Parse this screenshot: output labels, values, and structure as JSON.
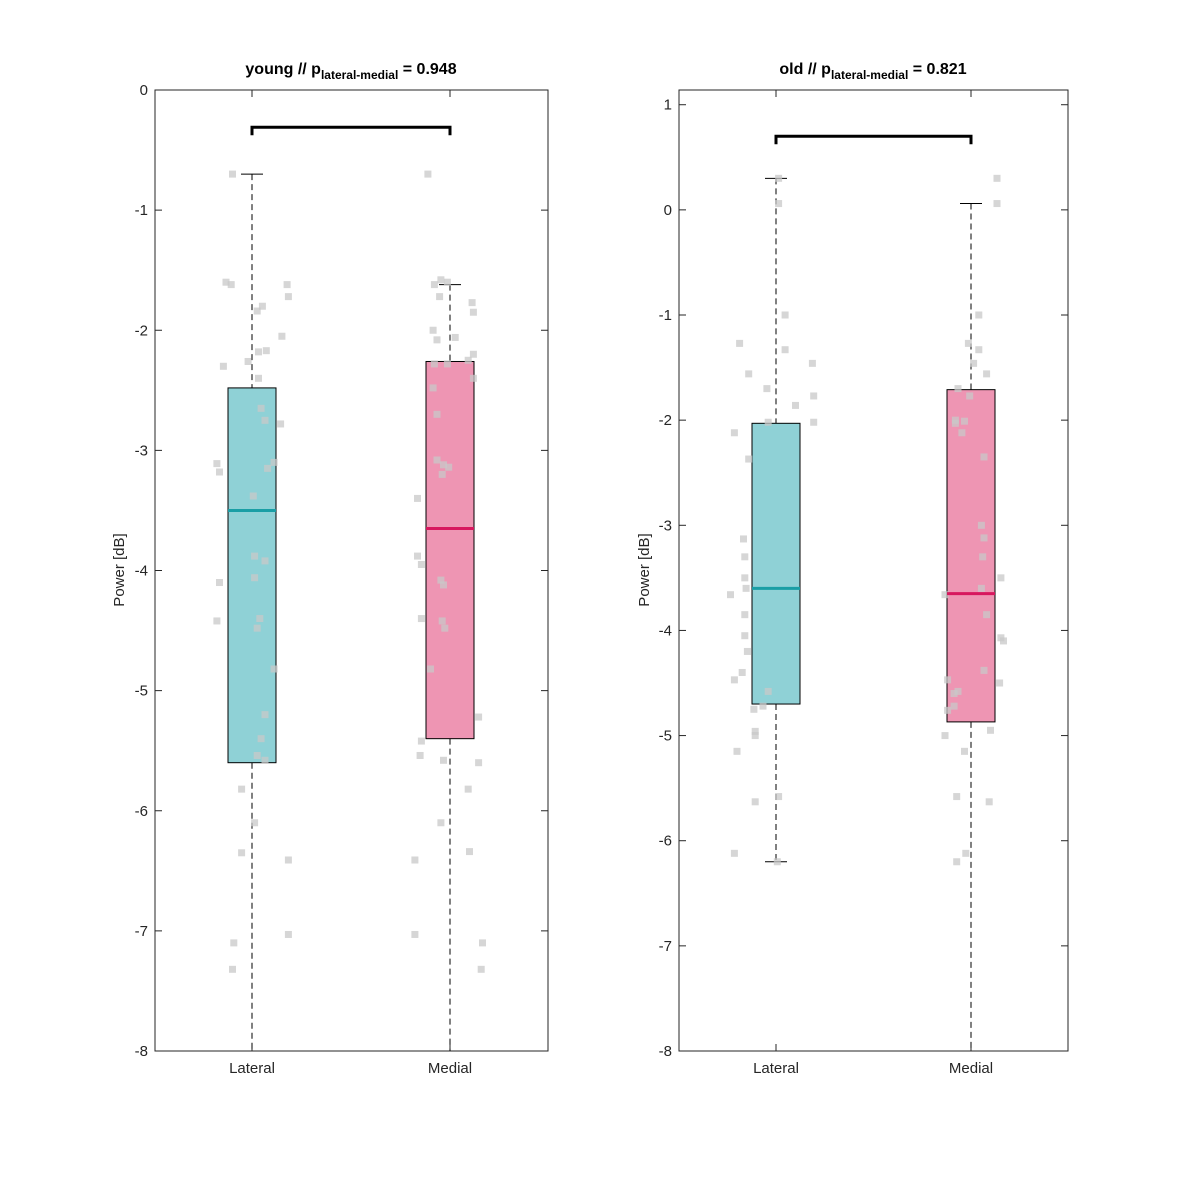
{
  "chart_data": [
    {
      "type": "box",
      "title_main": "young // p",
      "title_sub": "lateral-medial",
      "title_rest": " = 0.948",
      "ylabel": "Power [dB]",
      "ylim": [
        -8,
        0
      ],
      "yticks": [
        0,
        -1,
        -2,
        -3,
        -4,
        -5,
        -6,
        -7,
        -8
      ],
      "categories": [
        "Lateral",
        "Medial"
      ],
      "boxes": [
        {
          "category": "Lateral",
          "q1": -5.6,
          "median": -3.5,
          "q3": -2.48,
          "whisker_low": -8.0,
          "whisker_high": -0.7,
          "fill": "#8fd1d6",
          "median_color": "#1a9ea5"
        },
        {
          "category": "Medial",
          "q1": -5.4,
          "median": -3.65,
          "q3": -2.26,
          "whisker_low": -8.0,
          "whisker_high": -1.62,
          "fill": "#ee95b3",
          "median_color": "#d7175e"
        }
      ],
      "bracket_y": -0.31,
      "points": [
        [
          [
            -0.15,
            -0.7
          ],
          [
            -0.2,
            -1.6
          ],
          [
            -0.16,
            -1.62
          ],
          [
            0.27,
            -1.62
          ],
          [
            0.28,
            -1.72
          ],
          [
            0.08,
            -1.8
          ],
          [
            0.04,
            -1.84
          ],
          [
            0.23,
            -2.05
          ],
          [
            0.11,
            -2.17
          ],
          [
            0.05,
            -2.18
          ],
          [
            -0.22,
            -2.3
          ],
          [
            -0.03,
            -2.26
          ],
          [
            0.05,
            -2.4
          ],
          [
            0.07,
            -2.65
          ],
          [
            0.1,
            -2.75
          ],
          [
            0.22,
            -2.78
          ],
          [
            -0.27,
            -3.11
          ],
          [
            -0.25,
            -3.18
          ],
          [
            0.17,
            -3.1
          ],
          [
            0.12,
            -3.15
          ],
          [
            0.01,
            -3.38
          ],
          [
            0.02,
            -3.88
          ],
          [
            0.1,
            -3.92
          ],
          [
            0.02,
            -4.06
          ],
          [
            -0.25,
            -4.1
          ],
          [
            0.06,
            -4.4
          ],
          [
            -0.27,
            -4.42
          ],
          [
            0.04,
            -4.48
          ],
          [
            0.17,
            -4.82
          ],
          [
            0.1,
            -5.2
          ],
          [
            0.07,
            -5.4
          ],
          [
            0.04,
            -5.54
          ],
          [
            0.1,
            -5.58
          ],
          [
            -0.08,
            -5.82
          ],
          [
            0.02,
            -6.1
          ],
          [
            -0.08,
            -6.35
          ],
          [
            0.28,
            -6.41
          ],
          [
            -0.14,
            -7.1
          ],
          [
            0.28,
            -7.03
          ],
          [
            -0.15,
            -7.32
          ]
        ],
        [
          [
            -0.17,
            -0.7
          ],
          [
            -0.12,
            -1.62
          ],
          [
            -0.07,
            -1.58
          ],
          [
            -0.02,
            -1.6
          ],
          [
            -0.08,
            -1.72
          ],
          [
            0.17,
            -1.77
          ],
          [
            0.18,
            -1.85
          ],
          [
            -0.13,
            -2.0
          ],
          [
            -0.1,
            -2.08
          ],
          [
            0.04,
            -2.06
          ],
          [
            0.18,
            -2.2
          ],
          [
            0.14,
            -2.25
          ],
          [
            -0.12,
            -2.28
          ],
          [
            -0.02,
            -2.28
          ],
          [
            -0.13,
            -2.48
          ],
          [
            0.18,
            -2.4
          ],
          [
            -0.1,
            -2.7
          ],
          [
            -0.1,
            -3.08
          ],
          [
            -0.05,
            -3.12
          ],
          [
            -0.01,
            -3.14
          ],
          [
            -0.06,
            -3.2
          ],
          [
            -0.25,
            -3.4
          ],
          [
            -0.25,
            -3.88
          ],
          [
            -0.22,
            -3.95
          ],
          [
            -0.07,
            -4.08
          ],
          [
            -0.05,
            -4.12
          ],
          [
            -0.22,
            -4.4
          ],
          [
            -0.06,
            -4.42
          ],
          [
            -0.04,
            -4.48
          ],
          [
            -0.15,
            -4.82
          ],
          [
            0.22,
            -5.22
          ],
          [
            -0.22,
            -5.42
          ],
          [
            -0.23,
            -5.54
          ],
          [
            -0.05,
            -5.58
          ],
          [
            0.22,
            -5.6
          ],
          [
            0.14,
            -5.82
          ],
          [
            -0.07,
            -6.1
          ],
          [
            0.15,
            -6.34
          ],
          [
            -0.27,
            -6.41
          ],
          [
            -0.27,
            -7.03
          ],
          [
            0.25,
            -7.1
          ],
          [
            0.24,
            -7.32
          ]
        ]
      ],
      "colors": {
        "point": "#c8c8c8",
        "bracket": "#000000"
      }
    },
    {
      "type": "box",
      "title_main": "old // p",
      "title_sub": "lateral-medial",
      "title_rest": " = 0.821",
      "ylabel": "Power [dB]",
      "ylim": [
        -8,
        1.14
      ],
      "yticks": [
        1,
        0,
        -1,
        -2,
        -3,
        -4,
        -5,
        -6,
        -7,
        -8
      ],
      "categories": [
        "Lateral",
        "Medial"
      ],
      "boxes": [
        {
          "category": "Lateral",
          "q1": -4.7,
          "median": -3.6,
          "q3": -2.03,
          "whisker_low": -6.2,
          "whisker_high": 0.3,
          "fill": "#8fd1d6",
          "median_color": "#1a9ea5"
        },
        {
          "category": "Medial",
          "q1": -4.87,
          "median": -3.65,
          "q3": -1.71,
          "whisker_low": -8.0,
          "whisker_high": 0.06,
          "fill": "#ee95b3",
          "median_color": "#d7175e"
        }
      ],
      "bracket_y": 0.7,
      "points": [
        [
          [
            0.02,
            0.3
          ],
          [
            0.02,
            0.06
          ],
          [
            0.07,
            -1.0
          ],
          [
            -0.28,
            -1.27
          ],
          [
            0.07,
            -1.33
          ],
          [
            0.28,
            -1.46
          ],
          [
            -0.21,
            -1.56
          ],
          [
            0.29,
            -1.77
          ],
          [
            -0.07,
            -1.7
          ],
          [
            0.15,
            -1.86
          ],
          [
            -0.06,
            -2.02
          ],
          [
            0.29,
            -2.02
          ],
          [
            -0.32,
            -2.12
          ],
          [
            -0.21,
            -2.37
          ],
          [
            -0.25,
            -3.13
          ],
          [
            -0.24,
            -3.3
          ],
          [
            -0.24,
            -3.5
          ],
          [
            -0.23,
            -3.6
          ],
          [
            -0.35,
            -3.66
          ],
          [
            -0.24,
            -3.85
          ],
          [
            -0.24,
            -4.05
          ],
          [
            -0.22,
            -4.2
          ],
          [
            -0.26,
            -4.4
          ],
          [
            -0.32,
            -4.47
          ],
          [
            -0.17,
            -4.75
          ],
          [
            -0.06,
            -4.58
          ],
          [
            -0.1,
            -4.72
          ],
          [
            -0.16,
            -4.96
          ],
          [
            -0.16,
            -5.0
          ],
          [
            -0.3,
            -5.15
          ],
          [
            0.02,
            -5.58
          ],
          [
            -0.16,
            -5.63
          ],
          [
            -0.32,
            -6.12
          ],
          [
            0.01,
            -6.2
          ]
        ],
        [
          [
            0.2,
            0.3
          ],
          [
            0.2,
            0.06
          ],
          [
            0.06,
            -1.0
          ],
          [
            -0.02,
            -1.27
          ],
          [
            0.06,
            -1.33
          ],
          [
            0.02,
            -1.46
          ],
          [
            0.12,
            -1.56
          ],
          [
            -0.1,
            -1.7
          ],
          [
            -0.01,
            -1.77
          ],
          [
            -0.12,
            -2.0
          ],
          [
            -0.12,
            -2.03
          ],
          [
            -0.05,
            -2.01
          ],
          [
            -0.07,
            -2.12
          ],
          [
            0.1,
            -2.35
          ],
          [
            0.08,
            -3.0
          ],
          [
            0.1,
            -3.12
          ],
          [
            0.09,
            -3.3
          ],
          [
            0.08,
            -3.6
          ],
          [
            0.23,
            -3.5
          ],
          [
            -0.2,
            -3.66
          ],
          [
            0.12,
            -3.85
          ],
          [
            0.23,
            -4.07
          ],
          [
            0.25,
            -4.1
          ],
          [
            0.1,
            -4.38
          ],
          [
            0.22,
            -4.5
          ],
          [
            -0.18,
            -4.47
          ],
          [
            -0.1,
            -4.58
          ],
          [
            -0.13,
            -4.6
          ],
          [
            -0.18,
            -4.76
          ],
          [
            -0.13,
            -4.72
          ],
          [
            0.15,
            -4.95
          ],
          [
            -0.2,
            -5.0
          ],
          [
            -0.05,
            -5.15
          ],
          [
            -0.11,
            -5.58
          ],
          [
            0.14,
            -5.63
          ],
          [
            -0.04,
            -6.12
          ],
          [
            -0.11,
            -6.2
          ]
        ]
      ],
      "colors": {
        "point": "#c8c8c8",
        "bracket": "#000000"
      }
    }
  ]
}
